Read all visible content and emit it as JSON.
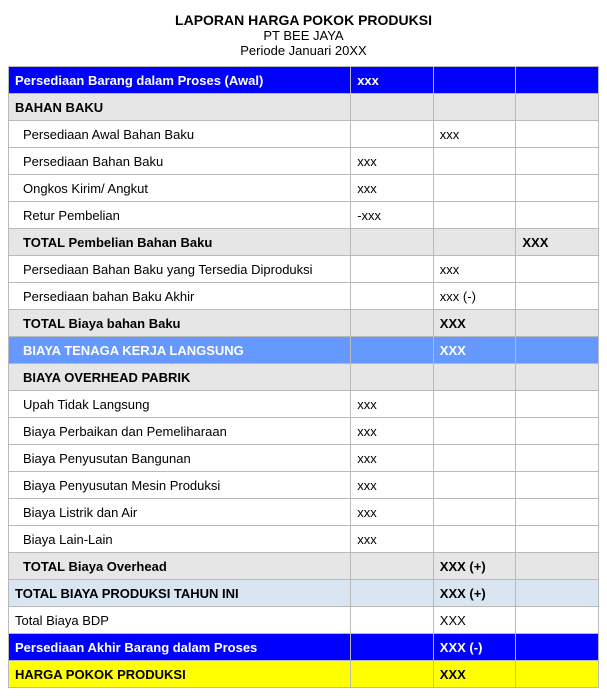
{
  "header": {
    "title": "LAPORAN HARGA POKOK PRODUKSI",
    "company": "PT BEE JAYA",
    "period": "Periode Januari 20XX"
  },
  "colors": {
    "row_blue": "#0000ff",
    "row_ltblue": "#6699ff",
    "row_gray": "#e6e6e6",
    "row_paleblue": "#d9e6f2",
    "row_yellow": "#ffff00",
    "border": "#b9b9b9",
    "text_white": "#ffffff",
    "text_black": "#000000",
    "background": "#ffffff"
  },
  "font": {
    "family": "Arial",
    "size": 13,
    "title_size": 14
  },
  "columns": {
    "names": [
      "desc",
      "v1",
      "v2",
      "v3"
    ],
    "widths_pct": [
      58,
      14,
      14,
      14
    ]
  },
  "rows": [
    {
      "style": "row-blue",
      "desc": "Persediaan Barang dalam Proses (Awal)",
      "v1": "xxx",
      "v2": "",
      "v3": ""
    },
    {
      "style": "row-gray",
      "desc": "BAHAN BAKU",
      "v1": "",
      "v2": "",
      "v3": ""
    },
    {
      "style": "",
      "indent": true,
      "desc": "Persediaan Awal Bahan Baku",
      "v1": "",
      "v2": "xxx",
      "v3": ""
    },
    {
      "style": "",
      "indent": true,
      "desc": "Persediaan Bahan Baku",
      "v1": "xxx",
      "v2": "",
      "v3": ""
    },
    {
      "style": "",
      "indent": true,
      "desc": "Ongkos Kirim/ Angkut",
      "v1": "xxx",
      "v2": "",
      "v3": ""
    },
    {
      "style": "",
      "indent": true,
      "desc": "Retur Pembelian",
      "v1": "-xxx",
      "v2": "",
      "v3": ""
    },
    {
      "style": "row-gray",
      "indent": true,
      "desc": "TOTAL Pembelian Bahan Baku",
      "v1": "",
      "v2": "",
      "v3": "XXX"
    },
    {
      "style": "",
      "indent": true,
      "desc": "Persediaan Bahan Baku yang Tersedia Diproduksi",
      "v1": "",
      "v2": "xxx",
      "v3": ""
    },
    {
      "style": "",
      "indent": true,
      "desc": "Persediaan bahan Baku Akhir",
      "v1": "",
      "v2": "xxx (-)",
      "v3": ""
    },
    {
      "style": "row-gray",
      "indent": true,
      "desc": "TOTAL Biaya bahan Baku",
      "v1": "",
      "v2": "XXX",
      "v3": ""
    },
    {
      "style": "row-ltblue",
      "indent": true,
      "desc": "BIAYA TENAGA KERJA LANGSUNG",
      "v1": "",
      "v2": "XXX",
      "v3": ""
    },
    {
      "style": "row-gray",
      "indent": true,
      "desc": "BIAYA OVERHEAD PABRIK",
      "v1": "",
      "v2": "",
      "v3": ""
    },
    {
      "style": "",
      "indent": true,
      "desc": "Upah Tidak Langsung",
      "v1": "xxx",
      "v2": "",
      "v3": ""
    },
    {
      "style": "",
      "indent": true,
      "desc": "Biaya Perbaikan dan Pemeliharaan",
      "v1": "xxx",
      "v2": "",
      "v3": ""
    },
    {
      "style": "",
      "indent": true,
      "desc": "Biaya Penyusutan Bangunan",
      "v1": "xxx",
      "v2": "",
      "v3": ""
    },
    {
      "style": "",
      "indent": true,
      "desc": "Biaya Penyusutan Mesin Produksi",
      "v1": "xxx",
      "v2": "",
      "v3": ""
    },
    {
      "style": "",
      "indent": true,
      "desc": "Biaya Listrik dan Air",
      "v1": "xxx",
      "v2": "",
      "v3": ""
    },
    {
      "style": "",
      "indent": true,
      "desc": "Biaya Lain-Lain",
      "v1": "xxx",
      "v2": "",
      "v3": ""
    },
    {
      "style": "row-gray",
      "indent": true,
      "desc": "TOTAL Biaya Overhead",
      "v1": "",
      "v2": "XXX (+)",
      "v3": ""
    },
    {
      "style": "row-paleblue",
      "desc": "TOTAL BIAYA PRODUKSI TAHUN INI",
      "v1": "",
      "v2": "XXX (+)",
      "v3": ""
    },
    {
      "style": "",
      "desc": "Total Biaya BDP",
      "v1": "",
      "v2": "XXX",
      "v3": ""
    },
    {
      "style": "row-blue",
      "desc": "Persediaan Akhir Barang dalam Proses",
      "v1": "",
      "v2": "XXX (-)",
      "v3": ""
    },
    {
      "style": "row-yellow",
      "desc": "HARGA POKOK PRODUKSI",
      "v1": "",
      "v2": "XXX",
      "v3": ""
    }
  ]
}
